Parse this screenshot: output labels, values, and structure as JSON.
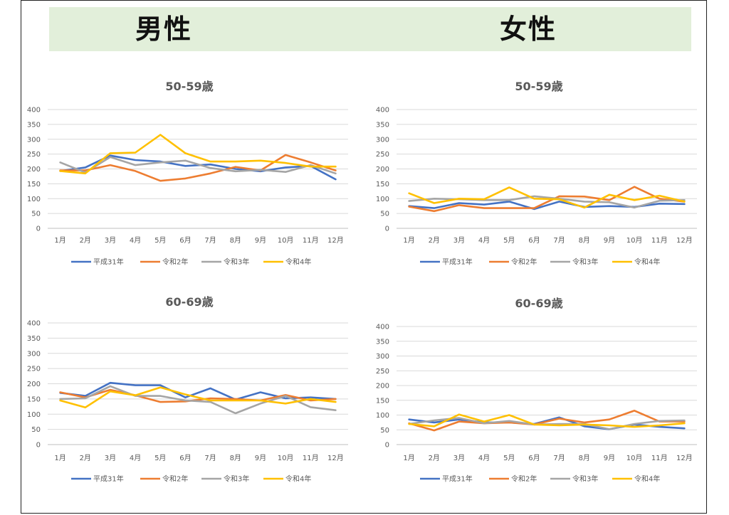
{
  "header": {
    "male_label": "男性",
    "female_label": "女性"
  },
  "series_colors": [
    "#4472c4",
    "#ed7d31",
    "#a5a5a5",
    "#ffc000"
  ],
  "chart_data": [
    {
      "type": "line",
      "title": "50-59歳",
      "categories": [
        "1月",
        "2月",
        "3月",
        "4月",
        "5月",
        "6月",
        "7月",
        "8月",
        "9月",
        "10月",
        "11月",
        "12月"
      ],
      "ylim": [
        0,
        400
      ],
      "yticks": [
        0,
        50,
        100,
        150,
        200,
        250,
        300,
        350,
        400
      ],
      "grid": true,
      "legend": "bottom",
      "series": [
        {
          "name": "平成31年",
          "values": [
            193,
            205,
            245,
            230,
            225,
            210,
            215,
            200,
            192,
            205,
            210,
            165
          ]
        },
        {
          "name": "令和2年",
          "values": [
            195,
            195,
            213,
            193,
            160,
            168,
            185,
            207,
            195,
            247,
            222,
            195
          ]
        },
        {
          "name": "令和3年",
          "values": [
            222,
            188,
            240,
            213,
            222,
            228,
            203,
            192,
            197,
            190,
            213,
            185
          ]
        },
        {
          "name": "令和4年",
          "values": [
            193,
            185,
            253,
            255,
            315,
            253,
            225,
            225,
            228,
            220,
            208,
            208
          ]
        }
      ]
    },
    {
      "type": "line",
      "title": "50-59歳",
      "categories": [
        "1月",
        "2月",
        "3月",
        "4月",
        "5月",
        "6月",
        "7月",
        "8月",
        "9月",
        "10月",
        "11月",
        "12月"
      ],
      "ylim": [
        0,
        400
      ],
      "yticks": [
        0,
        50,
        100,
        150,
        200,
        250,
        300,
        350,
        400
      ],
      "grid": true,
      "legend": "bottom",
      "series": [
        {
          "name": "平成31年",
          "values": [
            75,
            68,
            85,
            80,
            90,
            65,
            90,
            72,
            75,
            72,
            83,
            82
          ]
        },
        {
          "name": "令和2年",
          "values": [
            73,
            58,
            78,
            68,
            68,
            68,
            108,
            107,
            95,
            140,
            100,
            90
          ]
        },
        {
          "name": "令和3年",
          "values": [
            92,
            100,
            98,
            95,
            95,
            108,
            100,
            90,
            88,
            70,
            93,
            95
          ]
        },
        {
          "name": "令和4年",
          "values": [
            118,
            85,
            100,
            98,
            138,
            100,
            98,
            70,
            113,
            95,
            110,
            90
          ]
        }
      ]
    },
    {
      "type": "line",
      "title": "60-69歳",
      "categories": [
        "1月",
        "2月",
        "3月",
        "4月",
        "5月",
        "6月",
        "7月",
        "8月",
        "9月",
        "10月",
        "11月",
        "12月"
      ],
      "ylim": [
        0,
        400
      ],
      "yticks": [
        0,
        50,
        100,
        150,
        200,
        250,
        300,
        350,
        400
      ],
      "grid": true,
      "legend": "bottom",
      "series": [
        {
          "name": "平成31年",
          "values": [
            170,
            160,
            203,
            195,
            195,
            155,
            185,
            148,
            172,
            152,
            155,
            150
          ]
        },
        {
          "name": "令和2年",
          "values": [
            172,
            155,
            180,
            162,
            140,
            142,
            152,
            150,
            145,
            163,
            145,
            150
          ]
        },
        {
          "name": "令和3年",
          "values": [
            150,
            152,
            192,
            160,
            160,
            145,
            140,
            103,
            135,
            160,
            123,
            113
          ]
        },
        {
          "name": "令和4年",
          "values": [
            145,
            122,
            175,
            162,
            188,
            165,
            145,
            145,
            145,
            135,
            150,
            140
          ]
        }
      ]
    },
    {
      "type": "line",
      "title": "60-69歳",
      "categories": [
        "1月",
        "2月",
        "3月",
        "4月",
        "5月",
        "6月",
        "7月",
        "8月",
        "9月",
        "10月",
        "11月",
        "12月"
      ],
      "ylim": [
        0,
        400
      ],
      "yticks": [
        0,
        50,
        100,
        150,
        200,
        250,
        300,
        350,
        400
      ],
      "grid": true,
      "legend": "bottom",
      "series": [
        {
          "name": "平成31年",
          "values": [
            85,
            75,
            85,
            75,
            75,
            70,
            92,
            62,
            52,
            68,
            60,
            55
          ]
        },
        {
          "name": "令和2年",
          "values": [
            72,
            48,
            78,
            72,
            75,
            68,
            88,
            75,
            85,
            115,
            78,
            78
          ]
        },
        {
          "name": "令和3年",
          "values": [
            70,
            82,
            90,
            72,
            80,
            68,
            70,
            70,
            52,
            70,
            80,
            82
          ]
        },
        {
          "name": "令和4年",
          "values": [
            70,
            62,
            102,
            78,
            100,
            68,
            65,
            68,
            65,
            60,
            65,
            72
          ]
        }
      ]
    }
  ]
}
